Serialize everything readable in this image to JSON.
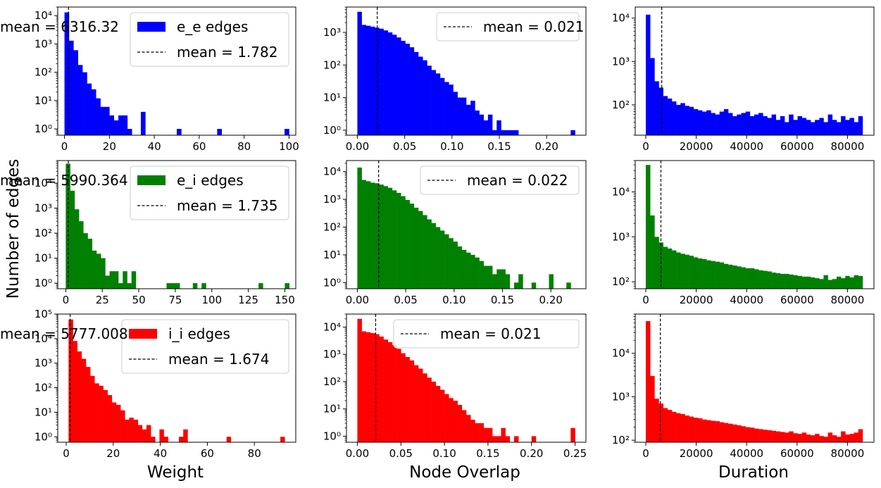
{
  "figure": {
    "ylabel": "Number of edges",
    "xlabels": [
      "Weight",
      "Node Overlap",
      "Duration"
    ]
  },
  "chart_data": [
    {
      "type": "bar",
      "row": 0,
      "col": 0,
      "color": "#0000ff",
      "yscale": "log",
      "xlim": [
        -3,
        103
      ],
      "ylim": [
        0.6,
        20000
      ],
      "xticks": [
        0,
        20,
        40,
        60,
        80,
        100
      ],
      "yticks": [
        1,
        10,
        100,
        1000,
        10000
      ],
      "bin_width": 2,
      "series": [
        {
          "name": "e_e edges",
          "x": [
            1,
            3,
            5,
            7,
            9,
            11,
            13,
            15,
            17,
            19,
            21,
            23,
            25,
            27,
            29,
            35,
            51,
            69,
            99
          ],
          "values": [
            13000,
            1300,
            600,
            180,
            100,
            40,
            25,
            12,
            6,
            6,
            3,
            2,
            3,
            3,
            1,
            4,
            1,
            1,
            1
          ]
        }
      ],
      "mean": {
        "label": "mean = 1.782",
        "value": 1.782
      },
      "legend": {
        "position": "upper-right"
      }
    },
    {
      "type": "bar",
      "row": 0,
      "col": 1,
      "color": "#0000ff",
      "yscale": "log",
      "xlim": [
        -0.0115,
        0.2415
      ],
      "ylim": [
        0.7,
        6000
      ],
      "xticks": [
        0.0,
        0.05,
        0.1,
        0.15,
        0.2
      ],
      "yticks": [
        1,
        10,
        100,
        1000
      ],
      "bin_width": 0.0046,
      "series": [
        {
          "name": "",
          "x": [
            0.0023,
            0.0069,
            0.0115,
            0.0161,
            0.0207,
            0.0253,
            0.0299,
            0.0345,
            0.0391,
            0.0437,
            0.0483,
            0.0529,
            0.0575,
            0.0621,
            0.0667,
            0.0713,
            0.0759,
            0.0805,
            0.0851,
            0.0897,
            0.0943,
            0.0989,
            0.1035,
            0.1081,
            0.1127,
            0.1173,
            0.1219,
            0.1265,
            0.1311,
            0.1357,
            0.1403,
            0.1449,
            0.1495,
            0.1541,
            0.1587,
            0.1633,
            0.1679,
            0.2277
          ],
          "values": [
            4300,
            1700,
            1600,
            1500,
            1400,
            1300,
            1150,
            1000,
            850,
            700,
            550,
            450,
            350,
            250,
            180,
            140,
            95,
            70,
            55,
            40,
            30,
            25,
            15,
            10,
            10,
            6,
            8,
            4,
            3,
            2,
            3,
            1,
            2,
            1,
            1,
            1,
            1,
            1
          ]
        }
      ],
      "mean": {
        "label": "mean = 0.021",
        "value": 0.021
      },
      "legend": {
        "position": "upper-right"
      }
    },
    {
      "type": "bar",
      "row": 0,
      "col": 2,
      "color": "#0000ff",
      "yscale": "log",
      "xlim": [
        -4200,
        90500
      ],
      "ylim": [
        20,
        18000
      ],
      "xticks": [
        0,
        20000,
        40000,
        60000,
        80000
      ],
      "yticks": [
        100,
        1000,
        10000
      ],
      "bin_width": 1720,
      "series": [
        {
          "name": "",
          "x": [
            860,
            2580,
            4300,
            6020,
            7740,
            9460,
            11180,
            12900,
            14620,
            16340,
            18060,
            19780,
            21500,
            23220,
            24940,
            26660,
            28380,
            30100,
            31820,
            33540,
            35260,
            36980,
            38700,
            40420,
            42140,
            43860,
            45580,
            47300,
            49020,
            50740,
            52460,
            54180,
            55900,
            57620,
            59340,
            61060,
            62780,
            64500,
            66220,
            67940,
            69660,
            71380,
            73100,
            74820,
            76540,
            78260,
            79980,
            81700,
            83420,
            85140
          ],
          "values": [
            12000,
            1200,
            350,
            250,
            160,
            140,
            120,
            100,
            110,
            95,
            90,
            80,
            75,
            70,
            75,
            65,
            60,
            70,
            80,
            65,
            55,
            60,
            65,
            70,
            55,
            60,
            65,
            55,
            50,
            60,
            45,
            55,
            40,
            60,
            45,
            55,
            50,
            45,
            40,
            45,
            50,
            40,
            60,
            45,
            40,
            55,
            45,
            50,
            40,
            55
          ]
        }
      ],
      "mean": {
        "label": "mean = 6316.32",
        "value": 6316.32
      },
      "legend": {
        "position": "upper-right"
      }
    },
    {
      "type": "bar",
      "row": 1,
      "col": 0,
      "color": "#008000",
      "yscale": "log",
      "xlim": [
        -5.5,
        157.5
      ],
      "ylim": [
        0.6,
        80000
      ],
      "xticks": [
        0,
        25,
        50,
        75,
        100,
        125,
        150
      ],
      "yticks": [
        1,
        10,
        100,
        1000,
        10000
      ],
      "bin_width": 3,
      "series": [
        {
          "name": "e_i edges",
          "x": [
            1.5,
            4.5,
            7.5,
            10.5,
            13.5,
            16.5,
            19.5,
            22.5,
            25.5,
            28.5,
            31.5,
            34.5,
            37.5,
            40.5,
            43.5,
            46.5,
            70.5,
            73.5,
            76.5,
            88.5,
            94.5,
            133.5,
            151.5
          ],
          "values": [
            60000,
            5000,
            900,
            300,
            100,
            60,
            20,
            15,
            10,
            2,
            3,
            3,
            1,
            3,
            1,
            3,
            1,
            1,
            1,
            1,
            1,
            1,
            1
          ]
        }
      ],
      "mean": {
        "label": "mean = 1.735",
        "value": 1.735
      },
      "legend": {
        "position": "upper-right"
      }
    },
    {
      "type": "bar",
      "row": 1,
      "col": 1,
      "color": "#008000",
      "yscale": "log",
      "xlim": [
        -0.0112,
        0.2362
      ],
      "ylim": [
        0.6,
        25000
      ],
      "xticks": [
        0.0,
        0.05,
        0.1,
        0.15,
        0.2
      ],
      "yticks": [
        1,
        10,
        100,
        1000,
        10000
      ],
      "bin_width": 0.0045,
      "series": [
        {
          "name": "",
          "x": [
            0.00225,
            0.00675,
            0.01125,
            0.01575,
            0.02025,
            0.02475,
            0.02925,
            0.03375,
            0.03825,
            0.04275,
            0.04725,
            0.05175,
            0.05625,
            0.06075,
            0.06525,
            0.06975,
            0.07425,
            0.07875,
            0.08325,
            0.08775,
            0.09225,
            0.09675,
            0.10125,
            0.10575,
            0.11025,
            0.11475,
            0.11925,
            0.12375,
            0.12825,
            0.13275,
            0.13725,
            0.14175,
            0.14625,
            0.15075,
            0.15525,
            0.16425,
            0.16875,
            0.18225,
            0.20025,
            0.21825
          ],
          "values": [
            14000,
            5000,
            4500,
            4000,
            3800,
            3400,
            3000,
            2600,
            2100,
            1700,
            1300,
            950,
            700,
            500,
            380,
            270,
            190,
            140,
            100,
            75,
            55,
            40,
            30,
            20,
            15,
            12,
            10,
            8,
            6,
            4,
            4,
            2,
            3,
            3,
            2,
            1,
            2,
            1,
            2,
            1
          ]
        }
      ],
      "mean": {
        "label": "mean = 0.022",
        "value": 0.022
      },
      "legend": {
        "position": "upper-right"
      }
    },
    {
      "type": "bar",
      "row": 1,
      "col": 2,
      "color": "#008000",
      "yscale": "log",
      "xlim": [
        -4200,
        90500
      ],
      "ylim": [
        70,
        50000
      ],
      "xticks": [
        0,
        20000,
        40000,
        60000,
        80000
      ],
      "yticks": [
        100,
        1000,
        10000
      ],
      "bin_width": 1720,
      "series": [
        {
          "name": "",
          "x": [
            860,
            2580,
            4300,
            6020,
            7740,
            9460,
            11180,
            12900,
            14620,
            16340,
            18060,
            19780,
            21500,
            23220,
            24940,
            26660,
            28380,
            30100,
            31820,
            33540,
            35260,
            36980,
            38700,
            40420,
            42140,
            43860,
            45580,
            47300,
            49020,
            50740,
            52460,
            54180,
            55900,
            57620,
            59340,
            61060,
            62780,
            64500,
            66220,
            67940,
            69660,
            71380,
            73100,
            74820,
            76540,
            78260,
            79980,
            81700,
            83420,
            85140
          ],
          "values": [
            40000,
            3000,
            1000,
            750,
            600,
            550,
            500,
            450,
            420,
            400,
            380,
            350,
            330,
            320,
            300,
            290,
            280,
            270,
            250,
            240,
            230,
            220,
            210,
            200,
            200,
            190,
            180,
            175,
            170,
            160,
            155,
            150,
            150,
            145,
            140,
            135,
            130,
            130,
            125,
            120,
            115,
            140,
            110,
            115,
            130,
            120,
            135,
            125,
            140,
            135
          ]
        }
      ],
      "mean": {
        "label": "mean = 5990.364",
        "value": 5990.364
      },
      "legend": {
        "position": "upper-right"
      }
    },
    {
      "type": "bar",
      "row": 2,
      "col": 0,
      "color": "#ff0000",
      "yscale": "log",
      "xlim": [
        -3.6,
        97.6
      ],
      "ylim": [
        0.6,
        100000
      ],
      "xticks": [
        0,
        20,
        40,
        60,
        80
      ],
      "yticks": [
        1,
        10,
        100,
        1000,
        10000,
        100000
      ],
      "bin_width": 1.84,
      "series": [
        {
          "name": "i_i edges",
          "x": [
            1.92,
            3.76,
            5.6,
            7.44,
            9.28,
            11.12,
            12.96,
            14.8,
            16.64,
            18.48,
            20.32,
            22.16,
            24,
            25.84,
            27.68,
            29.52,
            31.36,
            33.2,
            35.04,
            36.88,
            40.56,
            42.4,
            48.84,
            50.68,
            69.08,
            91.96
          ],
          "values": [
            60000,
            8000,
            3000,
            1500,
            700,
            300,
            150,
            120,
            80,
            50,
            25,
            20,
            12,
            5,
            6,
            5,
            3,
            2,
            3,
            1,
            2,
            1,
            1,
            2,
            1,
            1
          ]
        }
      ],
      "mean": {
        "label": "mean = 1.674",
        "value": 1.674
      },
      "legend": {
        "position": "upper-right"
      }
    },
    {
      "type": "bar",
      "row": 2,
      "col": 1,
      "color": "#ff0000",
      "yscale": "log",
      "xlim": [
        -0.0125,
        0.2625
      ],
      "ylim": [
        0.6,
        30000
      ],
      "xticks": [
        0.0,
        0.05,
        0.1,
        0.15,
        0.2,
        0.25
      ],
      "yticks": [
        1,
        10,
        100,
        1000,
        10000
      ],
      "bin_width": 0.005,
      "series": [
        {
          "name": "",
          "x": [
            0.0025,
            0.0075,
            0.0125,
            0.0175,
            0.0225,
            0.0275,
            0.0325,
            0.0375,
            0.0425,
            0.0475,
            0.0525,
            0.0575,
            0.0625,
            0.0675,
            0.0725,
            0.0775,
            0.0825,
            0.0875,
            0.0925,
            0.0975,
            0.1025,
            0.1075,
            0.1125,
            0.1175,
            0.1225,
            0.1275,
            0.1325,
            0.1375,
            0.1425,
            0.1475,
            0.1525,
            0.1575,
            0.1625,
            0.1675,
            0.1725,
            0.1825,
            0.2025,
            0.2475
          ],
          "values": [
            20000,
            7000,
            6500,
            6000,
            5500,
            4500,
            3500,
            2800,
            2200,
            1600,
            1100,
            800,
            600,
            400,
            300,
            200,
            140,
            100,
            70,
            50,
            35,
            25,
            20,
            14,
            9,
            6,
            4,
            3,
            3,
            2,
            2,
            1,
            1,
            2,
            1,
            1,
            1,
            2
          ]
        }
      ],
      "mean": {
        "label": "mean = 0.021",
        "value": 0.021
      },
      "legend": {
        "position": "upper-right"
      }
    },
    {
      "type": "bar",
      "row": 2,
      "col": 2,
      "color": "#ff0000",
      "yscale": "log",
      "xlim": [
        -4200,
        90500
      ],
      "ylim": [
        90,
        80000
      ],
      "xticks": [
        0,
        20000,
        40000,
        60000,
        80000
      ],
      "yticks": [
        100,
        1000,
        10000
      ],
      "bin_width": 1720,
      "series": [
        {
          "name": "",
          "x": [
            860,
            2580,
            4300,
            6020,
            7740,
            9460,
            11180,
            12900,
            14620,
            16340,
            18060,
            19780,
            21500,
            23220,
            24940,
            26660,
            28380,
            30100,
            31820,
            33540,
            35260,
            36980,
            38700,
            40420,
            42140,
            43860,
            45580,
            47300,
            49020,
            50740,
            52460,
            54180,
            55900,
            57620,
            59340,
            61060,
            62780,
            64500,
            66220,
            67940,
            69660,
            71380,
            73100,
            74820,
            76540,
            78260,
            79980,
            81700,
            83420,
            85140
          ],
          "values": [
            55000,
            3000,
            900,
            700,
            550,
            500,
            450,
            420,
            400,
            370,
            350,
            330,
            320,
            300,
            290,
            280,
            275,
            260,
            250,
            240,
            230,
            220,
            210,
            200,
            195,
            185,
            180,
            175,
            170,
            165,
            160,
            155,
            150,
            160,
            145,
            140,
            150,
            135,
            130,
            140,
            125,
            120,
            150,
            130,
            120,
            160,
            135,
            140,
            150,
            180
          ]
        }
      ],
      "mean": {
        "label": "mean = 5777.008",
        "value": 5777.008
      },
      "legend": {
        "position": "upper-right"
      }
    }
  ]
}
